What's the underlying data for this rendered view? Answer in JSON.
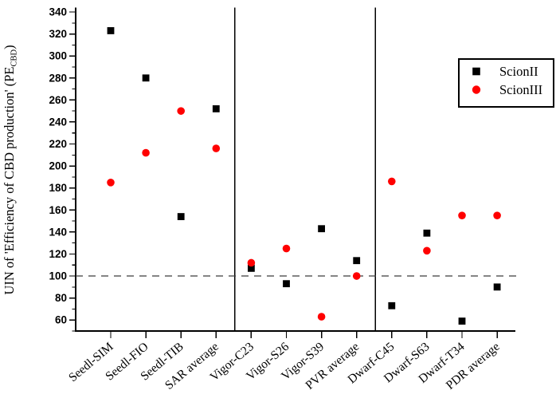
{
  "chart_data": {
    "type": "scatter",
    "title": "",
    "xlabel": "",
    "ylabel": "UIN of 'Efficiency of CBD production' (PE_CBD)",
    "ylabel_parts": {
      "prefix": "UIN of 'Efficiency of CBD production' (PE",
      "subscript": "CBD",
      "suffix": ")"
    },
    "categories": [
      "Seedl-SIM",
      "Seedl-FIO",
      "Seedl-TIB",
      "SAR average",
      "Vigor-C23",
      "Vigor-S26",
      "Vigor-S39",
      "PVR average",
      "Dwarf-C45",
      "Dwarf-S63",
      "Dwarf-T34",
      "PDR average"
    ],
    "series": [
      {
        "name": "ScionII",
        "marker": "square",
        "color": "#000000",
        "values": [
          323,
          280,
          154,
          252,
          107,
          93,
          143,
          114,
          73,
          139,
          59,
          90
        ]
      },
      {
        "name": "ScionIII",
        "marker": "circle",
        "color": "#ff0000",
        "values": [
          185,
          212,
          250,
          216,
          112,
          125,
          63,
          100,
          186,
          123,
          155,
          155
        ]
      }
    ],
    "ylim": [
      50,
      344
    ],
    "yticks": [
      60,
      80,
      100,
      120,
      140,
      160,
      180,
      200,
      220,
      240,
      260,
      280,
      300,
      320,
      340
    ],
    "y_minor_step": 10,
    "reference_line": {
      "value": 100,
      "style": "dashed",
      "color": "#3c3c3c"
    },
    "divider_after_indices": [
      3,
      7
    ],
    "grid": false,
    "legend": {
      "position": "top-right"
    }
  }
}
